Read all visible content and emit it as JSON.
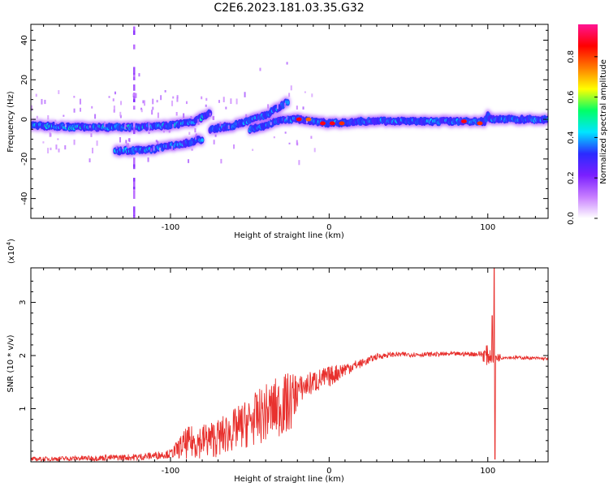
{
  "title": "C2E6.2023.181.03.35.G32",
  "colors": {
    "snr_line": "#e8312e",
    "frame": "#000000",
    "background": "#ffffff"
  },
  "chart_data": [
    {
      "type": "heatmap",
      "xlabel": "Height of straight line (km)",
      "ylabel": "Frequency (Hz)",
      "xlim": [
        -188,
        138
      ],
      "ylim": [
        -50,
        48
      ],
      "x_ticks": [
        -100,
        0,
        100
      ],
      "y_ticks": [
        -40,
        -20,
        0,
        20,
        40
      ],
      "colorbar": {
        "label": "Normalized spectral amplitude",
        "range": [
          0,
          0.96
        ],
        "ticks": [
          0.0,
          0.2,
          0.4,
          0.6,
          0.8
        ],
        "colormap": [
          "#ffffff",
          "#c77dff",
          "#7a1fff",
          "#2b2bff",
          "#00e5ff",
          "#00ff66",
          "#ffff00",
          "#ff7a00",
          "#ff0000",
          "#ff1493"
        ]
      },
      "ridges": [
        {
          "points": [
            [
              -188,
              -3
            ],
            [
              -160,
              -4
            ],
            [
              -140,
              -4
            ],
            [
              -120,
              -4
            ],
            [
              -100,
              -3
            ],
            [
              -85,
              -1
            ],
            [
              -75,
              3
            ]
          ],
          "amplitude": 0.45
        },
        {
          "points": [
            [
              -135,
              -16
            ],
            [
              -110,
              -15
            ],
            [
              -90,
              -12
            ],
            [
              -80,
              -10
            ]
          ],
          "amplitude": 0.42
        },
        {
          "points": [
            [
              -75,
              -5
            ],
            [
              -60,
              -3
            ],
            [
              -48,
              0
            ],
            [
              -40,
              2
            ],
            [
              -32,
              6
            ],
            [
              -26,
              9
            ]
          ],
          "amplitude": 0.4
        },
        {
          "points": [
            [
              -50,
              -5
            ],
            [
              -40,
              -3
            ],
            [
              -32,
              -1
            ],
            [
              -26,
              0
            ],
            [
              -20,
              0
            ]
          ],
          "amplitude": 0.38
        },
        {
          "points": [
            [
              -20,
              0
            ],
            [
              0,
              -2
            ],
            [
              20,
              -1
            ],
            [
              60,
              -1
            ],
            [
              98,
              -1
            ],
            [
              100,
              2
            ],
            [
              102,
              0
            ],
            [
              138,
              0
            ]
          ],
          "amplitude": 0.4
        }
      ],
      "hotspots": [
        {
          "x": -19,
          "y": 0,
          "amplitude": 0.9
        },
        {
          "x": -13,
          "y": 0,
          "amplitude": 0.8
        },
        {
          "x": -4,
          "y": -2,
          "amplitude": 0.9
        },
        {
          "x": 2,
          "y": -2,
          "amplitude": 0.9
        },
        {
          "x": 8,
          "y": -2,
          "amplitude": 0.85
        },
        {
          "x": 85,
          "y": -1,
          "amplitude": 0.9
        },
        {
          "x": 95,
          "y": -2,
          "amplitude": 0.85
        }
      ]
    },
    {
      "type": "line",
      "xlabel": "Height of straight line (km)",
      "ylabel": "SNR (10 * v/v)",
      "scale_note": "(x10",
      "scale_exponent": "4",
      "scale_close": ")",
      "xlim": [
        -188,
        138
      ],
      "ylim": [
        0,
        3.65
      ],
      "x_ticks": [
        -100,
        0,
        100
      ],
      "y_ticks": [
        1,
        2,
        3
      ],
      "envelope": [
        [
          -188,
          0.05
        ],
        [
          -150,
          0.07
        ],
        [
          -120,
          0.09
        ],
        [
          -100,
          0.15
        ],
        [
          -90,
          0.35
        ],
        [
          -70,
          0.45
        ],
        [
          -50,
          0.75
        ],
        [
          -35,
          1.0
        ],
        [
          -25,
          1.1
        ],
        [
          -20,
          1.35
        ],
        [
          -10,
          1.5
        ],
        [
          0,
          1.6
        ],
        [
          10,
          1.75
        ],
        [
          20,
          1.85
        ],
        [
          30,
          1.98
        ],
        [
          40,
          2.02
        ],
        [
          60,
          2.02
        ],
        [
          80,
          2.03
        ],
        [
          95,
          2.03
        ],
        [
          100,
          2.0
        ],
        [
          103,
          1.98
        ],
        [
          106,
          1.97
        ],
        [
          120,
          1.96
        ],
        [
          138,
          1.94
        ]
      ],
      "noise": [
        [
          -188,
          0.04
        ],
        [
          -130,
          0.06
        ],
        [
          -100,
          0.08
        ],
        [
          -90,
          0.3
        ],
        [
          -60,
          0.4
        ],
        [
          -40,
          0.55
        ],
        [
          -25,
          0.6
        ],
        [
          -18,
          0.25
        ],
        [
          0,
          0.2
        ],
        [
          20,
          0.08
        ],
        [
          35,
          0.05
        ],
        [
          80,
          0.04
        ],
        [
          95,
          0.05
        ],
        [
          99,
          0.2
        ],
        [
          106,
          0.1
        ],
        [
          110,
          0.03
        ],
        [
          138,
          0.03
        ]
      ],
      "spike": {
        "x": 104,
        "max": 3.65,
        "min": 0.05
      }
    }
  ]
}
